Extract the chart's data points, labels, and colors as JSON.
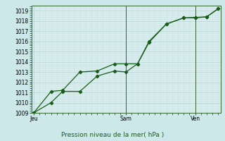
{
  "xlabel": "Pression niveau de la mer( hPa )",
  "bg_color": "#cce8e8",
  "plot_bg_color": "#d8eeee",
  "grid_major_color": "#b8d8d8",
  "grid_minor_color": "#cce0e0",
  "line_color": "#1a5c1a",
  "ylim": [
    1009,
    1019.5
  ],
  "yticks": [
    1009,
    1010,
    1011,
    1012,
    1013,
    1014,
    1015,
    1016,
    1017,
    1018,
    1019
  ],
  "day_labels": [
    "Jeu",
    "Sam",
    "Ven"
  ],
  "day_positions": [
    0.0,
    8.0,
    14.0
  ],
  "vline_positions": [
    8.0,
    14.0
  ],
  "xlim": [
    -0.2,
    16.2
  ],
  "line1_x": [
    0.0,
    1.5,
    2.5,
    4.0,
    5.5,
    7.0,
    8.0,
    9.0,
    10.0,
    11.5,
    13.0,
    14.0,
    15.0,
    16.0
  ],
  "line1_y": [
    1009.0,
    1010.0,
    1011.1,
    1011.1,
    1012.6,
    1013.1,
    1013.0,
    1013.8,
    1016.0,
    1017.7,
    1018.3,
    1018.3,
    1018.4,
    1019.2
  ],
  "line2_x": [
    0.0,
    1.5,
    2.5,
    4.0,
    5.5,
    7.0,
    8.0,
    9.0,
    10.0,
    11.5,
    13.0,
    14.0,
    15.0,
    16.0
  ],
  "line2_y": [
    1009.0,
    1011.1,
    1011.2,
    1013.0,
    1013.1,
    1013.8,
    1013.8,
    1013.8,
    1015.9,
    1017.7,
    1018.3,
    1018.35,
    1018.4,
    1019.2
  ],
  "tick_fontsize": 5.5,
  "xlabel_fontsize": 6.5,
  "marker": "D",
  "markersize": 2.2,
  "linewidth": 0.9
}
